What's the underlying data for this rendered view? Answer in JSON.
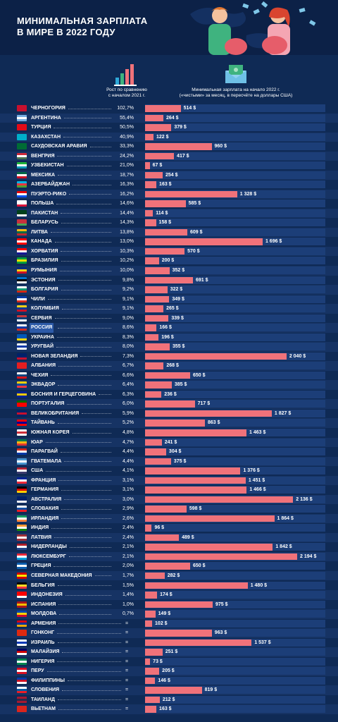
{
  "header": {
    "title_line1": "МИНИМАЛЬНАЯ ЗАРПЛАТА",
    "title_line2": "В МИРЕ В 2022 ГОДУ"
  },
  "legend": {
    "growth_line1": "Рост по сравнению",
    "growth_line2": "с началом 2021 г.",
    "wage_line1": "Минимальная зарплата на начало 2022 г.",
    "wage_line2": "(«чистыми» за месяц, в пересчёте на доллары США)"
  },
  "colors": {
    "background": "#0f2a55",
    "bar": "#f0727a",
    "row_alt": "#163364",
    "highlight": "#2c5aa8"
  },
  "highlighted_country": "РОССИЯ",
  "chart_data": {
    "type": "bar",
    "orientation": "horizontal",
    "categories": [
      "ЧЕРНОГОРИЯ",
      "АРГЕНТИНА",
      "ТУРЦИЯ",
      "КАЗАХСТАН",
      "САУДОВСКАЯ АРАВИЯ",
      "ВЕНГРИЯ",
      "УЗБЕКИСТАН",
      "МЕКСИКА",
      "АЗЕРБАЙДЖАН",
      "ПУЭРТО-РИКО",
      "ПОЛЬША",
      "ПАКИСТАН",
      "БЕЛАРУСЬ",
      "ЛИТВА",
      "КАНАДА",
      "ХОРВАТИЯ",
      "БРАЗИЛИЯ",
      "РУМЫНИЯ",
      "ЭСТОНИЯ",
      "БОЛГАРИЯ",
      "ЧИЛИ",
      "КОЛУМБИЯ",
      "СЕРБИЯ",
      "РОССИЯ",
      "УКРАИНА",
      "УРУГВАЙ",
      "НОВАЯ ЗЕЛАНДИЯ",
      "АЛБАНИЯ",
      "ЧЕХИЯ",
      "ЭКВАДОР",
      "БОСНИЯ И ГЕРЦЕГОВИНА",
      "ПОРТУГАЛИЯ",
      "ВЕЛИКОБРИТАНИЯ",
      "ТАЙВАНЬ",
      "ЮЖНАЯ КОРЕЯ",
      "ЮАР",
      "ПАРАГВАЙ",
      "ГВАТЕМАЛА",
      "США",
      "ФРАНЦИЯ",
      "ГЕРМАНИЯ",
      "АВСТРАЛИЯ",
      "СЛОВАКИЯ",
      "ИРЛАНДИЯ",
      "ИНДИЯ",
      "ЛАТВИЯ",
      "НИДЕРЛАНДЫ",
      "ЛЮКСЕМБУРГ",
      "ГРЕЦИЯ",
      "СЕВЕРНАЯ МАКЕДОНИЯ",
      "БЕЛЬГИЯ",
      "ИНДОНЕЗИЯ",
      "ИСПАНИЯ",
      "МОЛДОВА",
      "АРМЕНИЯ",
      "ГОНКОНГ",
      "ИЗРАИЛЬ",
      "МАЛАЙЗИЯ",
      "НИГЕРИЯ",
      "ПЕРУ",
      "ФИЛИППИНЫ",
      "СЛОВЕНИЯ",
      "ТАИЛАНД",
      "ВЬЕТНАМ"
    ],
    "growth": [
      "102,7%",
      "55,4%",
      "50,5%",
      "40,9%",
      "33,3%",
      "24,2%",
      "21,0%",
      "18,7%",
      "16,3%",
      "16,2%",
      "14,6%",
      "14,4%",
      "14,3%",
      "13,8%",
      "13,0%",
      "10,3%",
      "10,2%",
      "10,0%",
      "9,8%",
      "9,2%",
      "9,1%",
      "9,1%",
      "9,0%",
      "8,6%",
      "8,3%",
      "8,0%",
      "7,3%",
      "6,7%",
      "6,6%",
      "6,4%",
      "6,3%",
      "6,0%",
      "5,9%",
      "5,2%",
      "4,8%",
      "4,7%",
      "4,4%",
      "4,4%",
      "4,1%",
      "3,1%",
      "3,1%",
      "3,0%",
      "2,9%",
      "2,6%",
      "2,4%",
      "2,4%",
      "2,1%",
      "2,1%",
      "2,0%",
      "1,7%",
      "1,5%",
      "1,4%",
      "1,0%",
      "0,7%",
      "=",
      "=",
      "=",
      "=",
      "=",
      "=",
      "=",
      "=",
      "=",
      "="
    ],
    "values": [
      514,
      264,
      379,
      122,
      960,
      417,
      67,
      254,
      163,
      1328,
      585,
      114,
      158,
      609,
      1696,
      570,
      200,
      352,
      691,
      322,
      349,
      265,
      339,
      166,
      196,
      355,
      2040,
      268,
      650,
      385,
      236,
      717,
      1827,
      863,
      1463,
      241,
      304,
      375,
      1376,
      1451,
      1466,
      2136,
      598,
      1864,
      96,
      489,
      1842,
      2194,
      650,
      282,
      1480,
      174,
      975,
      149,
      102,
      963,
      1537,
      251,
      73,
      205,
      146,
      819,
      212,
      163
    ],
    "value_labels": [
      "514 $",
      "264 $",
      "379 $",
      "122 $",
      "960 $",
      "417 $",
      "67 $",
      "254 $",
      "163 $",
      "1 328 $",
      "585 $",
      "114 $",
      "158 $",
      "609 $",
      "1 696 $",
      "570 $",
      "200 $",
      "352 $",
      "691 $",
      "322 $",
      "349 $",
      "265 $",
      "339 $",
      "166 $",
      "196 $",
      "355 $",
      "2 040 $",
      "268 $",
      "650 $",
      "385 $",
      "236 $",
      "717 $",
      "1 827 $",
      "863 $",
      "1 463 $",
      "241 $",
      "304 $",
      "375 $",
      "1 376 $",
      "1 451 $",
      "1 466 $",
      "2 136 $",
      "598 $",
      "1 864 $",
      "96 $",
      "489 $",
      "1 842 $",
      "2 194 $",
      "650 $",
      "282 $",
      "1 480 $",
      "174 $",
      "975 $",
      "149 $",
      "102 $",
      "963 $",
      "1 537 $",
      "251 $",
      "73 $",
      "205 $",
      "146 $",
      "819 $",
      "212 $",
      "163 $"
    ],
    "xlim": [
      0,
      2194
    ]
  }
}
